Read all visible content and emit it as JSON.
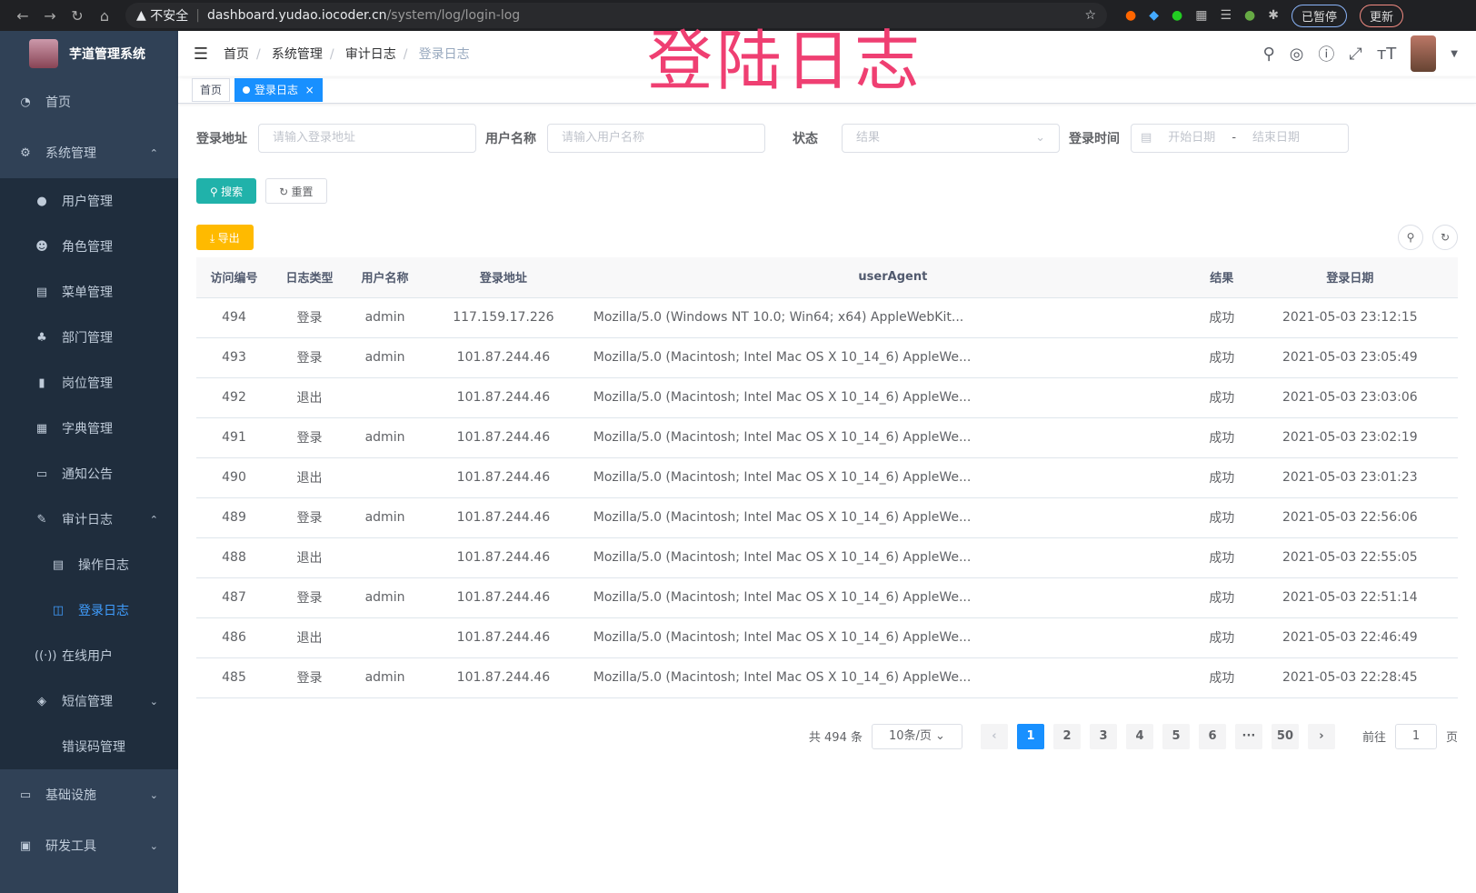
{
  "browser": {
    "security": "不安全",
    "url_host": "dashboard.yudao.iocoder.cn",
    "url_path": "/system/log/login-log",
    "paused": "已暂停",
    "update": "更新"
  },
  "overlay_title": "登陆日志",
  "sidebar": {
    "title": "芋道管理系统",
    "items": [
      {
        "label": "首页",
        "icon": "dashboard-icon",
        "level": 0
      },
      {
        "label": "系统管理",
        "icon": "gear-icon",
        "level": 0,
        "expanded": true
      },
      {
        "label": "用户管理",
        "icon": "user-icon",
        "level": 1
      },
      {
        "label": "角色管理",
        "icon": "role-icon",
        "level": 1
      },
      {
        "label": "菜单管理",
        "icon": "menu-icon",
        "level": 1
      },
      {
        "label": "部门管理",
        "icon": "tree-icon",
        "level": 1
      },
      {
        "label": "岗位管理",
        "icon": "post-icon",
        "level": 1
      },
      {
        "label": "字典管理",
        "icon": "dict-icon",
        "level": 1
      },
      {
        "label": "通知公告",
        "icon": "message-icon",
        "level": 1
      },
      {
        "label": "审计日志",
        "icon": "edit-icon",
        "level": 1,
        "expanded": true
      },
      {
        "label": "操作日志",
        "icon": "form-icon",
        "level": 2
      },
      {
        "label": "登录日志",
        "icon": "logininfor-icon",
        "level": 2,
        "active": true
      },
      {
        "label": "在线用户",
        "icon": "online-icon",
        "level": 1
      },
      {
        "label": "短信管理",
        "icon": "validCode-icon",
        "level": 1,
        "collapsed": true
      },
      {
        "label": "错误码管理",
        "icon": "code-icon",
        "level": 1
      },
      {
        "label": "基础设施",
        "icon": "monitor-icon",
        "level": 0,
        "collapsed": true
      },
      {
        "label": "研发工具",
        "icon": "tool-icon",
        "level": 0,
        "collapsed": true
      }
    ]
  },
  "breadcrumb": [
    "首页",
    "系统管理",
    "审计日志",
    "登录日志"
  ],
  "tags": [
    {
      "label": "首页"
    },
    {
      "label": "登录日志",
      "active": true
    }
  ],
  "filters": {
    "ip_label": "登录地址",
    "ip_placeholder": "请输入登录地址",
    "user_label": "用户名称",
    "user_placeholder": "请输入用户名称",
    "status_label": "状态",
    "status_placeholder": "结果",
    "time_label": "登录时间",
    "start_placeholder": "开始日期",
    "end_placeholder": "结束日期",
    "sep": "-"
  },
  "buttons": {
    "search": "搜索",
    "reset": "重置",
    "export": "导出"
  },
  "table": {
    "headers": [
      "访问编号",
      "日志类型",
      "用户名称",
      "登录地址",
      "userAgent",
      "结果",
      "登录日期"
    ],
    "rows": [
      [
        "494",
        "登录",
        "admin",
        "117.159.17.226",
        "Mozilla/5.0 (Windows NT 10.0; Win64; x64) AppleWebKit...",
        "成功",
        "2021-05-03 23:12:15"
      ],
      [
        "493",
        "登录",
        "admin",
        "101.87.244.46",
        "Mozilla/5.0 (Macintosh; Intel Mac OS X 10_14_6) AppleWe...",
        "成功",
        "2021-05-03 23:05:49"
      ],
      [
        "492",
        "退出",
        "",
        "101.87.244.46",
        "Mozilla/5.0 (Macintosh; Intel Mac OS X 10_14_6) AppleWe...",
        "成功",
        "2021-05-03 23:03:06"
      ],
      [
        "491",
        "登录",
        "admin",
        "101.87.244.46",
        "Mozilla/5.0 (Macintosh; Intel Mac OS X 10_14_6) AppleWe...",
        "成功",
        "2021-05-03 23:02:19"
      ],
      [
        "490",
        "退出",
        "",
        "101.87.244.46",
        "Mozilla/5.0 (Macintosh; Intel Mac OS X 10_14_6) AppleWe...",
        "成功",
        "2021-05-03 23:01:23"
      ],
      [
        "489",
        "登录",
        "admin",
        "101.87.244.46",
        "Mozilla/5.0 (Macintosh; Intel Mac OS X 10_14_6) AppleWe...",
        "成功",
        "2021-05-03 22:56:06"
      ],
      [
        "488",
        "退出",
        "",
        "101.87.244.46",
        "Mozilla/5.0 (Macintosh; Intel Mac OS X 10_14_6) AppleWe...",
        "成功",
        "2021-05-03 22:55:05"
      ],
      [
        "487",
        "登录",
        "admin",
        "101.87.244.46",
        "Mozilla/5.0 (Macintosh; Intel Mac OS X 10_14_6) AppleWe...",
        "成功",
        "2021-05-03 22:51:14"
      ],
      [
        "486",
        "退出",
        "",
        "101.87.244.46",
        "Mozilla/5.0 (Macintosh; Intel Mac OS X 10_14_6) AppleWe...",
        "成功",
        "2021-05-03 22:46:49"
      ],
      [
        "485",
        "登录",
        "admin",
        "101.87.244.46",
        "Mozilla/5.0 (Macintosh; Intel Mac OS X 10_14_6) AppleWe...",
        "成功",
        "2021-05-03 22:28:45"
      ]
    ]
  },
  "pagination": {
    "total": "共 494 条",
    "page_size": "10条/页",
    "pages": [
      "1",
      "2",
      "3",
      "4",
      "5",
      "6",
      "···",
      "50"
    ],
    "current": "1",
    "goto_label": "前往",
    "goto_value": "1",
    "goto_suffix": "页"
  },
  "colors": {
    "sidebar": "#304156",
    "accent": "#1890ff",
    "search": "#20b2aa",
    "export": "#ffba00",
    "overlay": "#ef3f72"
  }
}
